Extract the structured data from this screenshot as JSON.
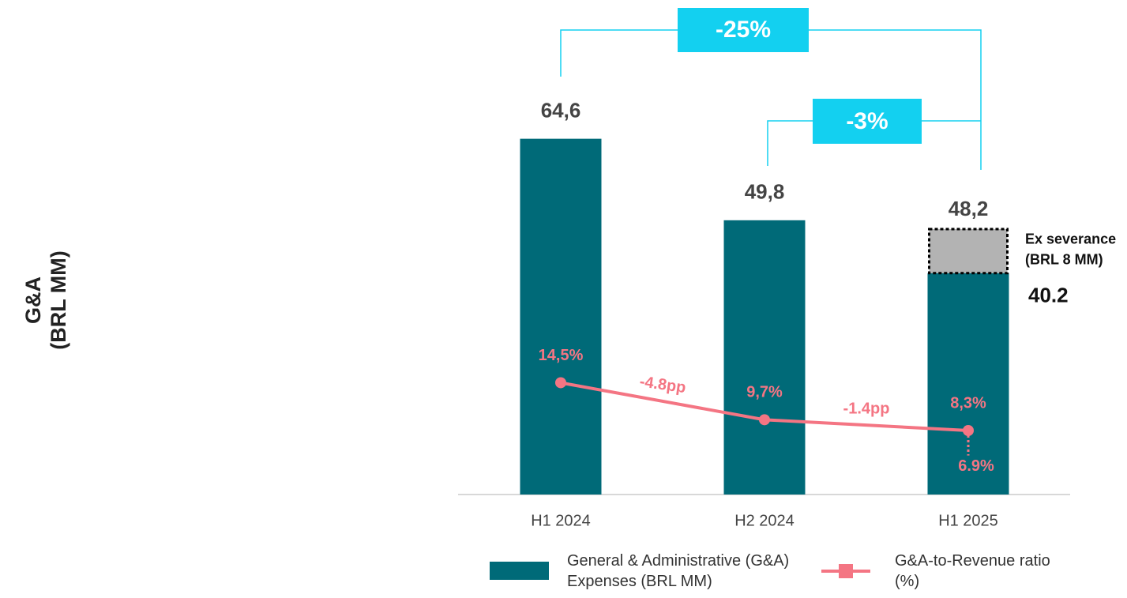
{
  "chart_data": {
    "type": "bar",
    "y_label": [
      "G&A",
      "(BRL MM)"
    ],
    "categories": [
      "H1 2024",
      "H2 2024",
      "H1 2025"
    ],
    "ylim": [
      0,
      70
    ],
    "y2lim": [
      0,
      50
    ],
    "series": [
      {
        "name": "General & Administrative (G&A) Expenses (BRL MM)",
        "color": "#006a78",
        "values": [
          64.6,
          49.8,
          40.2
        ],
        "value_labels": [
          "64,6",
          "49,8",
          "40.2"
        ]
      },
      {
        "name": "Ex severance (BRL 8 MM)",
        "label_lines": [
          "Ex severance",
          "(BRL 8 MM)"
        ],
        "color": "#b3b3b3",
        "values": [
          null,
          null,
          8
        ]
      },
      {
        "name": "G&A-to-Revenue ratio (%)",
        "type": "line",
        "axis": "y2",
        "color": "#f47583",
        "values": [
          14.5,
          9.7,
          8.3
        ],
        "value_labels": [
          "14,5%",
          "9,7%",
          "8,3%"
        ]
      }
    ],
    "totals": {
      "value": 48.2,
      "label": "48,2"
    },
    "ex_severance_ratio": {
      "value": 6.9,
      "label": "6.9%"
    },
    "ratio_changes": [
      "-4.8pp",
      "-1.4pp"
    ],
    "comparisons": [
      "-25%",
      "-3%"
    ]
  }
}
